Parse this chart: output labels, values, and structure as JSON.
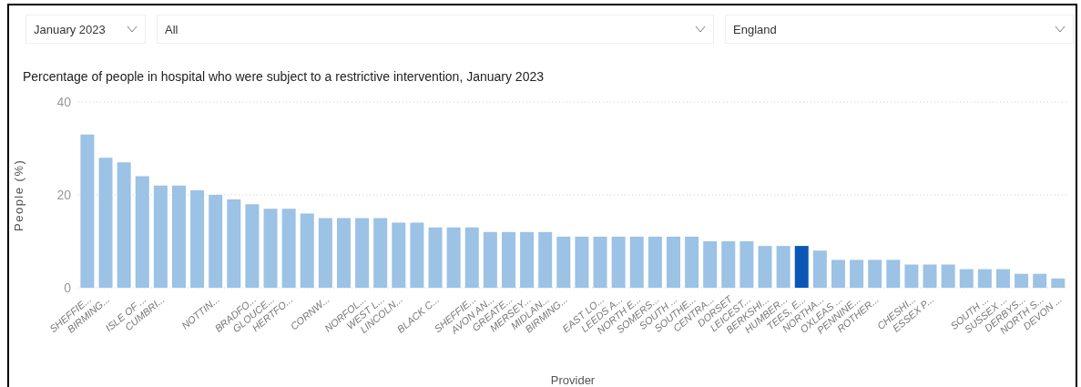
{
  "chart_data": {
    "type": "bar",
    "title": "Percentage of people in hospital who were subject to a restrictive intervention, January 2023",
    "xlabel": "Provider",
    "ylabel": "People (%)",
    "annotations": [
      "January 2023",
      "All",
      "England"
    ],
    "categories": [
      "SHEFFIE...",
      "BIRMING...",
      null,
      "ISLE OF ...",
      "CUMBRI...",
      null,
      null,
      "NOTTIN...",
      null,
      "BRADFO...",
      "GLOUCE...",
      "HERTFO...",
      null,
      "CORNW...",
      null,
      "NORFOL...",
      "WEST L...",
      "LINCOLN...",
      null,
      "BLACK C...",
      null,
      "SHEFFIE...",
      "AVON AN...",
      "GREATE...",
      "MERSEY...",
      "MIDLAN...",
      "BIRMING...",
      null,
      "EAST LO...",
      "LEEDS A...",
      "NORTH E...",
      "SOMERS...",
      "SOUTH ...",
      "SOUTHE...",
      "CENTRA...",
      "DORSET",
      "LEICEST...",
      "BERKSHI...",
      "HUMBER...",
      "TEES, E...",
      "NORTHA...",
      "OXLEAS ...",
      "PENNINE...",
      "ROTHER...",
      null,
      "CHESHI...",
      "ESSEX P...",
      null,
      null,
      "SOUTH ...",
      "SUSSEX ...",
      "DERBYS...",
      "NORTH S...",
      "DEVON ..."
    ],
    "values": [
      33,
      28,
      27,
      24,
      22,
      22,
      21,
      20,
      19,
      18,
      17,
      17,
      16,
      15,
      15,
      15,
      15,
      14,
      14,
      13,
      13,
      13,
      12,
      12,
      12,
      12,
      11,
      11,
      11,
      11,
      11,
      11,
      11,
      11,
      10,
      10,
      10,
      9,
      9,
      9,
      8,
      6,
      6,
      6,
      6,
      5,
      5,
      5,
      4,
      4,
      4,
      3,
      3,
      2
    ],
    "colors": [
      "#9cc2e5",
      "#9cc2e5",
      "#9cc2e5",
      "#9cc2e5",
      "#9cc2e5",
      "#9cc2e5",
      "#9cc2e5",
      "#9cc2e5",
      "#9cc2e5",
      "#9cc2e5",
      "#9cc2e5",
      "#9cc2e5",
      "#9cc2e5",
      "#9cc2e5",
      "#9cc2e5",
      "#9cc2e5",
      "#9cc2e5",
      "#9cc2e5",
      "#9cc2e5",
      "#9cc2e5",
      "#9cc2e5",
      "#9cc2e5",
      "#9cc2e5",
      "#9cc2e5",
      "#9cc2e5",
      "#9cc2e5",
      "#9cc2e5",
      "#9cc2e5",
      "#9cc2e5",
      "#9cc2e5",
      "#9cc2e5",
      "#9cc2e5",
      "#9cc2e5",
      "#9cc2e5",
      "#9cc2e5",
      "#9cc2e5",
      "#9cc2e5",
      "#9cc2e5",
      "#9cc2e5",
      "#0b57b5",
      "#9cc2e5",
      "#9cc2e5",
      "#9cc2e5",
      "#9cc2e5",
      "#9cc2e5",
      "#9cc2e5",
      "#9cc2e5",
      "#9cc2e5",
      "#9cc2e5",
      "#9cc2e5",
      "#9cc2e5",
      "#9cc2e5",
      "#9cc2e5",
      "#9cc2e5"
    ],
    "ylim": [
      0,
      40
    ],
    "yticks": [
      0,
      20,
      40
    ],
    "grid": "y"
  }
}
